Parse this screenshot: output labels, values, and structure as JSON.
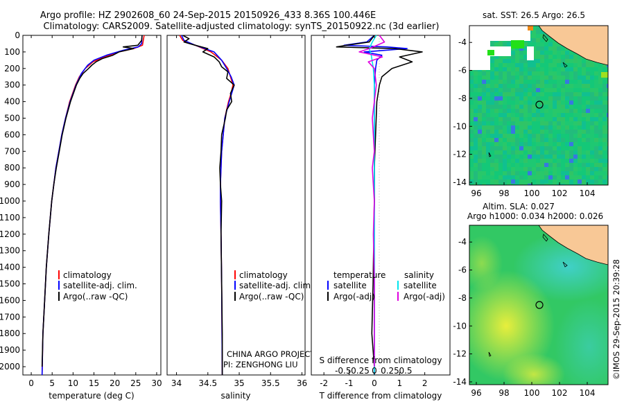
{
  "header": {
    "line1": "Argo profile: HZ 2902608_60 24-Sep-2015 20150926_433 8.36S 100.446E",
    "line2": "Climatology: CARS2009. Satellite-adjusted climatology: synTS_20150922.nc (3d earlier)"
  },
  "colors": {
    "red": "#ff0000",
    "blue": "#0000ff",
    "black": "#000000",
    "cyan": "#00e5ee",
    "magenta": "#e000e0",
    "land": "#f8c896",
    "sea": "#1ec872"
  },
  "chart_data": [
    {
      "id": "temperature",
      "type": "line",
      "xlabel": "temperature (deg C)",
      "ylabel": "",
      "xlim": [
        -2,
        31
      ],
      "ylim": [
        2050,
        0
      ],
      "xticks": [
        0,
        5,
        10,
        15,
        20,
        25,
        30
      ],
      "yticks": [
        0,
        100,
        200,
        300,
        400,
        500,
        600,
        700,
        800,
        900,
        1000,
        1100,
        1200,
        1300,
        1400,
        1500,
        1600,
        1700,
        1800,
        1900,
        2000
      ],
      "legend": [
        "climatology",
        "satellite-adj. clim.",
        "Argo(..raw -QC)"
      ],
      "series": [
        {
          "name": "climatology",
          "color": "red",
          "depth": [
            0,
            60,
            80,
            100,
            130,
            160,
            200,
            250,
            300,
            400,
            500,
            600,
            700,
            800,
            900,
            1000,
            1200,
            1400,
            1600,
            1800,
            2050
          ],
          "values": [
            27.0,
            26.6,
            24.5,
            21.0,
            17.5,
            14.8,
            12.9,
            11.5,
            10.6,
            9.2,
            8.2,
            7.3,
            6.6,
            5.9,
            5.4,
            4.9,
            4.2,
            3.6,
            3.2,
            2.8,
            2.6
          ]
        },
        {
          "name": "satellite-adj. clim.",
          "color": "blue",
          "depth": [
            0,
            50,
            70,
            90,
            120,
            150,
            180,
            230,
            300,
            400,
            500,
            600,
            700,
            800,
            900,
            1000,
            1200,
            1400,
            1600,
            1800,
            2050
          ],
          "values": [
            26.5,
            26.4,
            25.6,
            22.0,
            18.0,
            15.0,
            13.5,
            12.0,
            10.7,
            9.3,
            8.2,
            7.3,
            6.6,
            5.9,
            5.4,
            4.9,
            4.2,
            3.6,
            3.2,
            2.8,
            2.6
          ]
        },
        {
          "name": "Argo(..raw -QC)",
          "color": "black",
          "depth": [
            0,
            30,
            60,
            70,
            80,
            100,
            120,
            140,
            160,
            180,
            200,
            230,
            260,
            300,
            400,
            500,
            600,
            700,
            800,
            900,
            1000,
            1200,
            1400,
            1600,
            1800,
            2000
          ],
          "values": [
            26.5,
            26.4,
            25.5,
            22.0,
            24.5,
            21.0,
            19.5,
            17.0,
            15.5,
            14.5,
            13.7,
            12.4,
            11.6,
            10.8,
            9.4,
            8.3,
            7.4,
            6.7,
            6.0,
            5.4,
            4.9,
            4.2,
            3.6,
            3.2,
            2.8,
            2.6
          ]
        }
      ]
    },
    {
      "id": "salinity",
      "type": "line",
      "xlabel": "salinity",
      "ylabel": "",
      "xlim": [
        33.85,
        36.05
      ],
      "ylim": [
        2050,
        0
      ],
      "xticks": [
        34,
        34.5,
        35,
        35.5,
        36
      ],
      "xtick_labels": [
        "34",
        "34.5",
        "35",
        "35.5",
        "36"
      ],
      "legend": [
        "climatology",
        "satellite-adj. clim.",
        "Argo(..raw -QC)"
      ],
      "annotation": [
        "CHINA ARGO PROJECT",
        "PI: ZENGHONG LIU"
      ],
      "series": [
        {
          "name": "climatology",
          "color": "red",
          "depth": [
            0,
            30,
            60,
            100,
            150,
            200,
            250,
            300,
            350,
            400,
            500,
            700,
            900,
            1000,
            1200,
            1500,
            2050
          ],
          "values": [
            34.05,
            34.1,
            34.3,
            34.55,
            34.72,
            34.82,
            34.86,
            34.9,
            34.87,
            34.83,
            34.77,
            34.72,
            34.7,
            34.7,
            34.71,
            34.72,
            34.73
          ]
        },
        {
          "name": "satellite-adj. clim.",
          "color": "blue",
          "depth": [
            0,
            30,
            60,
            100,
            150,
            200,
            250,
            300,
            350,
            400,
            500,
            700,
            900,
            1000,
            1200,
            1500,
            2050
          ],
          "values": [
            34.08,
            34.12,
            34.3,
            34.6,
            34.72,
            34.8,
            34.87,
            34.92,
            34.88,
            34.84,
            34.77,
            34.72,
            34.7,
            34.7,
            34.71,
            34.72,
            34.73
          ]
        },
        {
          "name": "Argo(..raw -QC)",
          "color": "black",
          "depth": [
            0,
            20,
            40,
            60,
            80,
            100,
            130,
            160,
            190,
            220,
            260,
            300,
            350,
            400,
            450,
            500,
            600,
            700,
            800,
            900,
            1000,
            1200,
            1500,
            1800,
            2050
          ],
          "values": [
            34.1,
            34.2,
            34.12,
            34.3,
            34.5,
            34.42,
            34.6,
            34.68,
            34.72,
            34.82,
            34.8,
            34.92,
            34.86,
            34.88,
            34.8,
            34.78,
            34.72,
            34.71,
            34.69,
            34.7,
            34.72,
            34.71,
            34.72,
            34.73,
            34.73
          ]
        }
      ]
    },
    {
      "id": "difference",
      "type": "line",
      "xlabel": "T difference from climatology",
      "xlabel_top": "S difference from climatology",
      "ylim": [
        2050,
        0
      ],
      "xlim": [
        -2.5,
        3.0
      ],
      "xticks": [
        -2,
        -1,
        0,
        1,
        2
      ],
      "s_ticks": [
        -0.5,
        -0.25,
        0,
        0.25,
        0.5
      ],
      "s_tick_labels": [
        "-0.5",
        "-0.25",
        "0",
        "0.25",
        "0.5"
      ],
      "legend": {
        "temperature_header": "temperature",
        "salinity_header": "salinity",
        "satellite": "satellite",
        "argo_adj": "Argo(-adj)"
      },
      "series": [
        {
          "name": "T satellite",
          "color": "blue",
          "depth": [
            0,
            40,
            60,
            70,
            80,
            100,
            120,
            150,
            200,
            300,
            500,
            800,
            1200,
            2050
          ],
          "values": [
            0.0,
            -0.3,
            -1.2,
            0.5,
            1.3,
            -0.4,
            0.3,
            0.1,
            0.05,
            0.0,
            0.0,
            0.0,
            0.0,
            0.0
          ]
        },
        {
          "name": "T Argo(-adj)",
          "color": "black",
          "depth": [
            0,
            40,
            60,
            70,
            80,
            100,
            130,
            160,
            200,
            250,
            300,
            400,
            600,
            800,
            1000,
            1500,
            1800,
            2000
          ],
          "values": [
            0.0,
            -0.2,
            -1.1,
            -1.5,
            0.8,
            1.9,
            1.0,
            1.5,
            0.7,
            0.3,
            0.2,
            0.1,
            0.05,
            0.0,
            0.0,
            -0.05,
            -0.1,
            0.0
          ]
        },
        {
          "name": "S satellite",
          "color": "cyan",
          "depth": [
            0,
            40,
            80,
            120,
            160,
            200,
            300,
            500,
            800,
            1200,
            2050
          ],
          "values": [
            0.02,
            -0.02,
            -0.05,
            -0.03,
            -0.02,
            -0.01,
            0.0,
            0.0,
            0.0,
            0.0,
            0.0
          ]
        },
        {
          "name": "S Argo(-adj)",
          "color": "magenta",
          "depth": [
            0,
            40,
            80,
            100,
            130,
            160,
            200,
            300,
            500,
            700,
            800,
            1000,
            1200,
            1500,
            2000
          ],
          "values": [
            0.05,
            0.1,
            -0.05,
            -0.15,
            0.08,
            -0.06,
            0.0,
            0.02,
            -0.02,
            0.0,
            -0.02,
            0.0,
            -0.01,
            0.0,
            0.0
          ]
        }
      ]
    },
    {
      "id": "sst-map",
      "type": "heatmap",
      "title": "sat. SST: 26.5 Argo: 26.5",
      "xlim": [
        95.5,
        105.5
      ],
      "ylim": [
        -14.2,
        -2.8
      ],
      "xticks": [
        96,
        98,
        100,
        102,
        104
      ],
      "yticks": [
        -4,
        -6,
        -8,
        -10,
        -12,
        -14
      ],
      "marker": {
        "lon": 100.446,
        "lat": -8.36
      }
    },
    {
      "id": "sla-map",
      "type": "heatmap",
      "title": "Altim. SLA: 0.027",
      "subtitle": "Argo h1000: 0.034 h2000: 0.026",
      "xlim": [
        95.5,
        105.5
      ],
      "ylim": [
        -14.2,
        -2.8
      ],
      "xticks": [
        96,
        98,
        100,
        102,
        104
      ],
      "yticks": [
        -4,
        -6,
        -8,
        -10,
        -12,
        -14
      ],
      "marker": {
        "lon": 100.446,
        "lat": -8.36
      }
    }
  ],
  "footer": {
    "stamp": "©IMOS 29-Sep-2015 20:39:28"
  }
}
